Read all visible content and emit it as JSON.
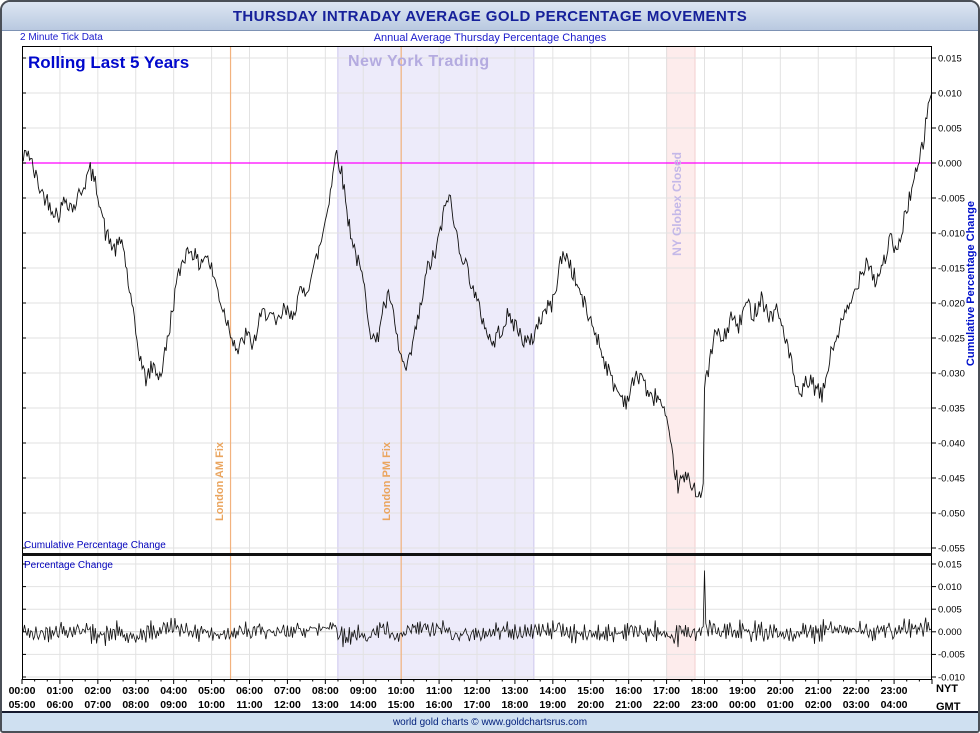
{
  "window": {
    "title": "THURSDAY INTRADAY AVERAGE GOLD PERCENTAGE MOVEMENTS"
  },
  "subheader": {
    "left": "2 Minute Tick Data",
    "center": "Annual Average Thursday Percentage Changes"
  },
  "footer": {
    "text": "world gold charts © www.goldchartsrus.com"
  },
  "chart_data": {
    "type": "line",
    "title": "THURSDAY INTRADAY AVERAGE GOLD PERCENTAGE MOVEMENTS",
    "chart_label": "Rolling Last 5 Years",
    "x_axis": {
      "hours": [
        0,
        24
      ],
      "nyt_label": "NYT",
      "gmt_label": "GMT",
      "nyt_ticks": [
        "00:00",
        "01:00",
        "02:00",
        "03:00",
        "04:00",
        "05:00",
        "06:00",
        "07:00",
        "08:00",
        "09:00",
        "10:00",
        "11:00",
        "12:00",
        "13:00",
        "14:00",
        "15:00",
        "16:00",
        "17:00",
        "18:00",
        "19:00",
        "20:00",
        "21:00",
        "22:00",
        "23:00"
      ],
      "gmt_ticks": [
        "05:00",
        "06:00",
        "07:00",
        "08:00",
        "09:00",
        "10:00",
        "11:00",
        "12:00",
        "13:00",
        "14:00",
        "15:00",
        "16:00",
        "17:00",
        "18:00",
        "19:00",
        "20:00",
        "21:00",
        "22:00",
        "23:00",
        "00:00",
        "01:00",
        "02:00",
        "03:00",
        "04:00"
      ]
    },
    "right_axis_title": "Cumulative Percentage Change",
    "panels": [
      {
        "name": "cumulative",
        "axis_label": "Cumulative Percentage Change",
        "ylim": [
          -0.055,
          0.015
        ],
        "ytick_step": 0.005,
        "yticks": [
          "0.015",
          "0.010",
          "0.005",
          "0.000",
          "-0.005",
          "-0.010",
          "-0.015",
          "-0.020",
          "-0.025",
          "-0.030",
          "-0.035",
          "-0.040",
          "-0.045",
          "-0.050",
          "-0.055"
        ]
      },
      {
        "name": "change",
        "axis_label": "Percentage Change",
        "ylim": [
          -0.01,
          0.015
        ],
        "ytick_step": 0.005,
        "yticks": [
          "0.015",
          "0.010",
          "0.005",
          "0.000",
          "-0.005",
          "-0.010"
        ]
      }
    ],
    "annotations": {
      "ny_trading": {
        "label": "New York Trading",
        "start_hour": 8.33,
        "end_hour": 13.5,
        "band_color": "#edebfa",
        "edge_color": "#cdc7ee",
        "label_color": "#b4abe0"
      },
      "globex_closed": {
        "label": "NY Globex Closed",
        "start_hour": 17.0,
        "end_hour": 17.75,
        "band_color": "#fdecec",
        "edge_color": "#f3cfcf",
        "label_color": "#c4b8e8"
      },
      "fixes": [
        {
          "label": "London AM Fix",
          "hour": 5.5
        },
        {
          "label": "London PM Fix",
          "hour": 10.0
        }
      ],
      "fix_color": "#f2b27e"
    },
    "colors": {
      "line": "#111111",
      "zero_line": "#ff00ff",
      "grid": "#e2e2e2",
      "grid_zero": "#cfcfcf",
      "axis_text": "#000000",
      "accent_blue": "#0000cc"
    },
    "series_sampling": {
      "tick_minutes": 2,
      "jitter": 0.0013,
      "seed": 42
    },
    "keypoints": [
      [
        0,
        0
      ],
      [
        0.15,
        0.002
      ],
      [
        0.3,
        -0.001
      ],
      [
        0.5,
        -0.004
      ],
      [
        0.75,
        -0.006
      ],
      [
        0.95,
        -0.0075
      ],
      [
        1.15,
        -0.005
      ],
      [
        1.35,
        -0.0065
      ],
      [
        1.55,
        -0.004
      ],
      [
        1.8,
        -0.001
      ],
      [
        2,
        -0.004
      ],
      [
        2.2,
        -0.01
      ],
      [
        2.45,
        -0.0125
      ],
      [
        2.65,
        -0.011
      ],
      [
        2.85,
        -0.019
      ],
      [
        3.05,
        -0.026
      ],
      [
        3.25,
        -0.031
      ],
      [
        3.45,
        -0.029
      ],
      [
        3.65,
        -0.0305
      ],
      [
        3.85,
        -0.025
      ],
      [
        4.05,
        -0.018
      ],
      [
        4.25,
        -0.0135
      ],
      [
        4.45,
        -0.012
      ],
      [
        4.65,
        -0.0145
      ],
      [
        4.85,
        -0.013
      ],
      [
        5.05,
        -0.016
      ],
      [
        5.25,
        -0.02
      ],
      [
        5.5,
        -0.024
      ],
      [
        5.7,
        -0.027
      ],
      [
        5.9,
        -0.0245
      ],
      [
        6.1,
        -0.026
      ],
      [
        6.3,
        -0.022
      ],
      [
        6.5,
        -0.021
      ],
      [
        6.7,
        -0.0235
      ],
      [
        6.9,
        -0.021
      ],
      [
        7.1,
        -0.022
      ],
      [
        7.3,
        -0.019
      ],
      [
        7.5,
        -0.018
      ],
      [
        7.7,
        -0.015
      ],
      [
        7.9,
        -0.011
      ],
      [
        8.1,
        -0.005
      ],
      [
        8.3,
        0.002
      ],
      [
        8.45,
        -0.002
      ],
      [
        8.6,
        -0.008
      ],
      [
        8.8,
        -0.013
      ],
      [
        9,
        -0.017
      ],
      [
        9.2,
        -0.024
      ],
      [
        9.35,
        -0.026
      ],
      [
        9.5,
        -0.021
      ],
      [
        9.7,
        -0.019
      ],
      [
        9.85,
        -0.024
      ],
      [
        10,
        -0.028
      ],
      [
        10.15,
        -0.03
      ],
      [
        10.3,
        -0.026
      ],
      [
        10.5,
        -0.021
      ],
      [
        10.7,
        -0.015
      ],
      [
        10.9,
        -0.013
      ],
      [
        11.1,
        -0.008
      ],
      [
        11.25,
        -0.004
      ],
      [
        11.4,
        -0.009
      ],
      [
        11.6,
        -0.013
      ],
      [
        11.8,
        -0.016
      ],
      [
        12,
        -0.02
      ],
      [
        12.2,
        -0.023
      ],
      [
        12.4,
        -0.026
      ],
      [
        12.6,
        -0.024
      ],
      [
        12.8,
        -0.022
      ],
      [
        13,
        -0.023
      ],
      [
        13.2,
        -0.025
      ],
      [
        13.4,
        -0.026
      ],
      [
        13.6,
        -0.023
      ],
      [
        13.8,
        -0.021
      ],
      [
        14,
        -0.02
      ],
      [
        14.2,
        -0.014
      ],
      [
        14.35,
        -0.013
      ],
      [
        14.55,
        -0.016
      ],
      [
        14.75,
        -0.019
      ],
      [
        14.95,
        -0.022
      ],
      [
        15.15,
        -0.0245
      ],
      [
        15.35,
        -0.028
      ],
      [
        15.55,
        -0.031
      ],
      [
        15.75,
        -0.033
      ],
      [
        15.95,
        -0.034
      ],
      [
        16.15,
        -0.031
      ],
      [
        16.35,
        -0.03
      ],
      [
        16.55,
        -0.034
      ],
      [
        16.75,
        -0.033
      ],
      [
        16.95,
        -0.036
      ],
      [
        17.15,
        -0.042
      ],
      [
        17.3,
        -0.046
      ],
      [
        17.5,
        -0.045
      ],
      [
        17.7,
        -0.046
      ],
      [
        17.9,
        -0.0475
      ],
      [
        17.97,
        -0.047
      ],
      [
        18,
        -0.032
      ],
      [
        18.15,
        -0.028
      ],
      [
        18.3,
        -0.024
      ],
      [
        18.5,
        -0.0255
      ],
      [
        18.7,
        -0.022
      ],
      [
        18.9,
        -0.0235
      ],
      [
        19.1,
        -0.02
      ],
      [
        19.3,
        -0.0215
      ],
      [
        19.5,
        -0.019
      ],
      [
        19.7,
        -0.022
      ],
      [
        19.9,
        -0.021
      ],
      [
        20.1,
        -0.024
      ],
      [
        20.3,
        -0.029
      ],
      [
        20.5,
        -0.034
      ],
      [
        20.7,
        -0.031
      ],
      [
        20.9,
        -0.032
      ],
      [
        21.1,
        -0.0335
      ],
      [
        21.3,
        -0.028
      ],
      [
        21.5,
        -0.0245
      ],
      [
        21.7,
        -0.022
      ],
      [
        21.9,
        -0.0195
      ],
      [
        22.1,
        -0.016
      ],
      [
        22.3,
        -0.0135
      ],
      [
        22.5,
        -0.017
      ],
      [
        22.7,
        -0.0145
      ],
      [
        22.9,
        -0.011
      ],
      [
        23.1,
        -0.013
      ],
      [
        23.3,
        -0.007
      ],
      [
        23.5,
        -0.003
      ],
      [
        23.65,
        -0.0005
      ],
      [
        23.8,
        0.004
      ],
      [
        23.9,
        0.008
      ],
      [
        24,
        0.0105
      ]
    ]
  }
}
